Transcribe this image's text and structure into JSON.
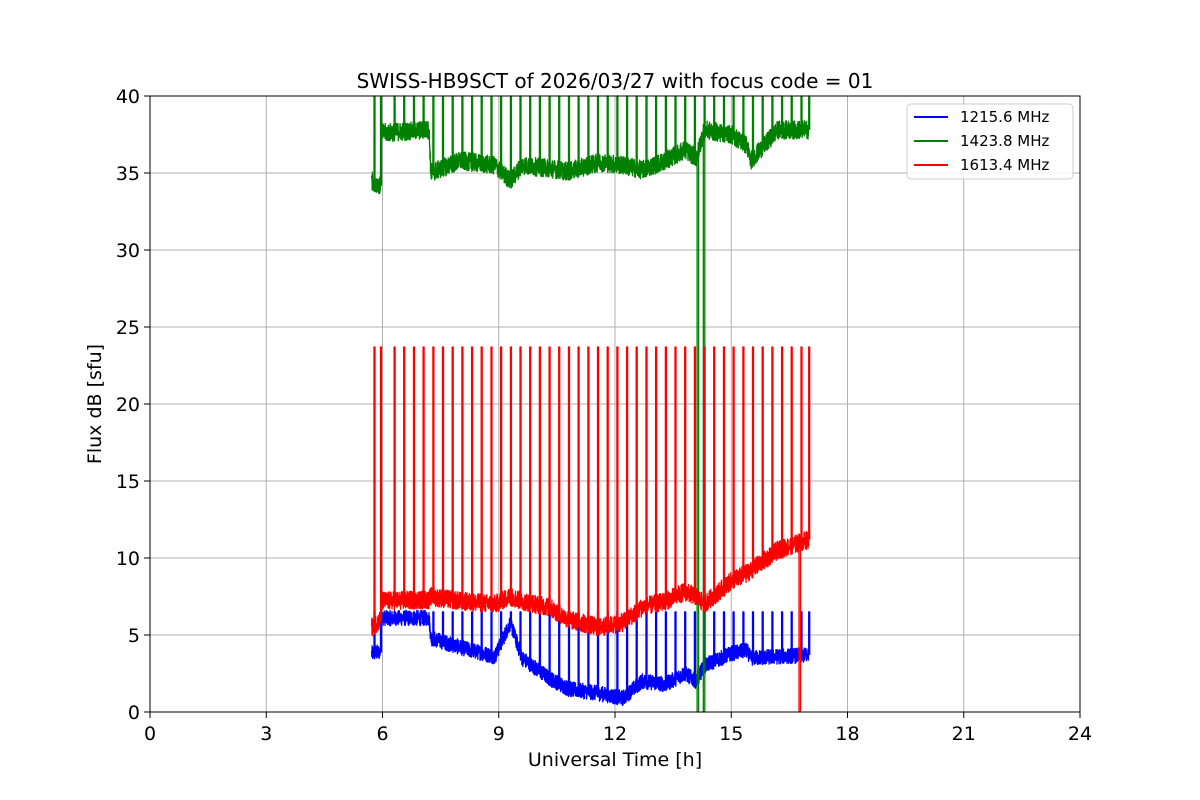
{
  "chart_data": {
    "type": "line",
    "title": "SWISS-HB9SCT of 2026/03/27 with focus code = 01",
    "xlabel": "Universal Time [h]",
    "ylabel": "Flux dB [sfu]",
    "xlim": [
      0,
      24
    ],
    "ylim": [
      0,
      40
    ],
    "xticks": [
      0,
      3,
      6,
      9,
      12,
      15,
      18,
      21,
      24
    ],
    "yticks": [
      0,
      5,
      10,
      15,
      20,
      25,
      30,
      35,
      40
    ],
    "grid": true,
    "legend_position": "top-right",
    "calibration_pulses_h": [
      5.78,
      5.95,
      6.3,
      6.55,
      6.8,
      7.05,
      7.3,
      7.55,
      7.8,
      8.05,
      8.3,
      8.55,
      8.8,
      9.05,
      9.3,
      9.55,
      9.8,
      10.05,
      10.3,
      10.55,
      10.8,
      11.05,
      11.3,
      11.55,
      11.8,
      12.05,
      12.3,
      12.55,
      12.8,
      13.05,
      13.3,
      13.55,
      13.8,
      14.05,
      14.3,
      14.55,
      14.8,
      15.05,
      15.3,
      15.55,
      15.8,
      16.05,
      16.3,
      16.55,
      16.8,
      17.0
    ],
    "series": [
      {
        "name": "1215.6 MHz",
        "color": "#0000ff",
        "noise": 0.5,
        "points": [
          [
            5.72,
            3.8
          ],
          [
            5.95,
            3.9
          ],
          [
            5.96,
            6.1
          ],
          [
            7.2,
            6.1
          ],
          [
            7.25,
            4.8
          ],
          [
            8.0,
            4.2
          ],
          [
            8.9,
            3.6
          ],
          [
            9.3,
            5.8
          ],
          [
            9.6,
            3.5
          ],
          [
            10.3,
            2.2
          ],
          [
            10.8,
            1.5
          ],
          [
            11.6,
            1.2
          ],
          [
            12.2,
            0.9
          ],
          [
            12.7,
            2.0
          ],
          [
            13.3,
            1.8
          ],
          [
            13.8,
            2.5
          ],
          [
            14.1,
            2.0
          ],
          [
            14.3,
            3.0
          ],
          [
            15.0,
            3.8
          ],
          [
            15.4,
            4.0
          ],
          [
            15.5,
            3.5
          ],
          [
            16.2,
            3.6
          ],
          [
            17.0,
            3.7
          ]
        ],
        "pulse_height": 6.5
      },
      {
        "name": "1423.8 MHz",
        "color": "#008000",
        "noise": 0.6,
        "points": [
          [
            5.72,
            34.5
          ],
          [
            5.95,
            34.2
          ],
          [
            5.96,
            37.6
          ],
          [
            7.2,
            37.8
          ],
          [
            7.25,
            35.0
          ],
          [
            8.0,
            35.8
          ],
          [
            8.9,
            35.5
          ],
          [
            9.3,
            34.5
          ],
          [
            9.6,
            35.5
          ],
          [
            10.3,
            35.3
          ],
          [
            10.8,
            35.1
          ],
          [
            11.6,
            35.7
          ],
          [
            12.2,
            35.5
          ],
          [
            12.7,
            35.2
          ],
          [
            13.3,
            35.8
          ],
          [
            13.8,
            36.5
          ],
          [
            14.1,
            36.0
          ],
          [
            14.3,
            37.8
          ],
          [
            15.0,
            37.5
          ],
          [
            15.4,
            36.8
          ],
          [
            15.5,
            35.8
          ],
          [
            16.2,
            37.8
          ],
          [
            17.0,
            37.8
          ]
        ],
        "pulse_height": 40,
        "dropouts": [
          [
            14.12,
            0
          ],
          [
            14.28,
            0
          ]
        ]
      },
      {
        "name": "1613.4 MHz",
        "color": "#ff0000",
        "noise": 0.6,
        "points": [
          [
            5.72,
            5.5
          ],
          [
            5.95,
            6.0
          ],
          [
            5.96,
            7.2
          ],
          [
            7.2,
            7.3
          ],
          [
            7.25,
            7.5
          ],
          [
            8.0,
            7.2
          ],
          [
            8.9,
            7.0
          ],
          [
            9.3,
            7.5
          ],
          [
            9.6,
            7.2
          ],
          [
            10.3,
            6.8
          ],
          [
            10.8,
            6.0
          ],
          [
            11.6,
            5.5
          ],
          [
            12.2,
            5.8
          ],
          [
            12.7,
            6.8
          ],
          [
            13.3,
            7.2
          ],
          [
            13.8,
            7.8
          ],
          [
            14.1,
            7.5
          ],
          [
            14.3,
            7.0
          ],
          [
            15.0,
            8.5
          ],
          [
            15.4,
            9.0
          ],
          [
            15.5,
            9.2
          ],
          [
            16.2,
            10.5
          ],
          [
            17.0,
            11.2
          ]
        ],
        "pulse_height": 23.7,
        "dropouts": [
          [
            16.75,
            0
          ]
        ]
      }
    ]
  }
}
